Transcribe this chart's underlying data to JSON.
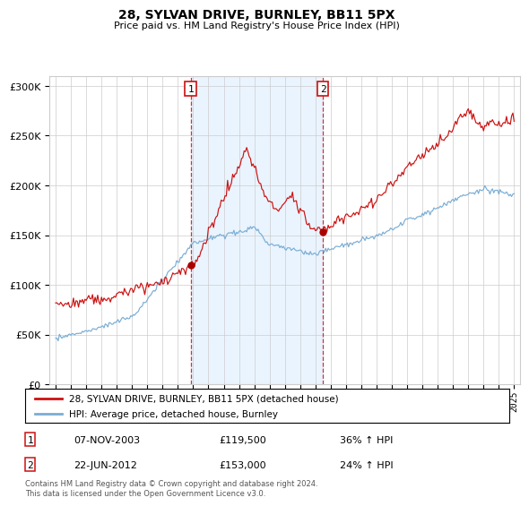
{
  "title": "28, SYLVAN DRIVE, BURNLEY, BB11 5PX",
  "subtitle": "Price paid vs. HM Land Registry's House Price Index (HPI)",
  "yticks": [
    0,
    50000,
    100000,
    150000,
    200000,
    250000,
    300000
  ],
  "ylim": [
    0,
    310000
  ],
  "xstart": 1995,
  "xend": 2025,
  "transaction1": {
    "date": "07-NOV-2003",
    "price": 119500,
    "year": 2003.85,
    "pct": "36%",
    "label": "1"
  },
  "transaction2": {
    "date": "22-JUN-2012",
    "price": 153000,
    "year": 2012.47,
    "pct": "24%",
    "label": "2"
  },
  "legend_line1": "28, SYLVAN DRIVE, BURNLEY, BB11 5PX (detached house)",
  "legend_line2": "HPI: Average price, detached house, Burnley",
  "footer": "Contains HM Land Registry data © Crown copyright and database right 2024.\nThis data is licensed under the Open Government Licence v3.0.",
  "line_color_hpi": "#7aadd4",
  "line_color_price": "#cc1111",
  "shade_color": "#ddeeff",
  "marker_color": "#aa0000",
  "vline_color": "#cc1111",
  "box_color": "#cc1111",
  "grid_color": "#cccccc",
  "bg_color": "#f0f4f8"
}
